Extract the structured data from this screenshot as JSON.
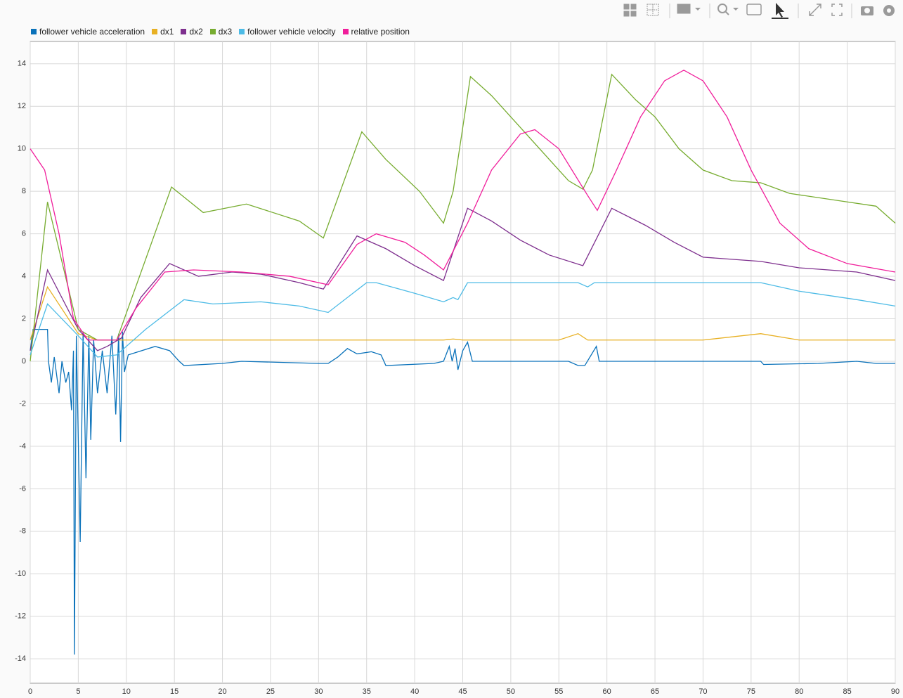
{
  "chart_data": {
    "type": "line",
    "xlim": [
      0,
      90
    ],
    "xticks": [
      0,
      5,
      10,
      15,
      20,
      25,
      30,
      35,
      40,
      45,
      50,
      55,
      60,
      65,
      70,
      75,
      80,
      85,
      90
    ],
    "ylim": [
      -15.15,
      15.05
    ],
    "yticks": [
      -14,
      -12,
      -10,
      -8,
      -6,
      -4,
      -2,
      0,
      2,
      4,
      6,
      8,
      10,
      12,
      14
    ],
    "grid": true,
    "series": [
      {
        "name": "follower vehicle acceleration",
        "color": "#0a72ba",
        "x": [
          0,
          0.3,
          1.8,
          1.9,
          2.2,
          2.5,
          3,
          3.3,
          3.7,
          4,
          4.3,
          4.5,
          4.6,
          4.8,
          5.2,
          5.5,
          5.8,
          6.1,
          6.3,
          6.6,
          7,
          7.5,
          8,
          8.5,
          8.9,
          9.2,
          9.4,
          9.6,
          9.8,
          10.2,
          13,
          14.5,
          15.5,
          16,
          20,
          22,
          30,
          31,
          32,
          33,
          34,
          35.5,
          36.5,
          37,
          42,
          43,
          43.6,
          43.9,
          44.2,
          44.5,
          45,
          45.5,
          46,
          56,
          57,
          57.7,
          58.9,
          59.2,
          76,
          76.3,
          82,
          86,
          88,
          90
        ],
        "values": [
          0.5,
          1.5,
          1.5,
          0,
          -1,
          0.2,
          -1.5,
          0,
          -1,
          -0.5,
          -2.3,
          0.5,
          -13.8,
          1.2,
          -8.5,
          1.4,
          -5.5,
          1.2,
          -3.7,
          1,
          -1.5,
          0.5,
          -1.5,
          1.2,
          -2.5,
          1.3,
          -3.8,
          1.4,
          -0.5,
          0.3,
          0.7,
          0.5,
          0,
          -0.2,
          -0.1,
          0,
          -0.1,
          -0.1,
          0.2,
          0.6,
          0.35,
          0.45,
          0.3,
          -0.2,
          -0.1,
          0,
          0.7,
          0,
          0.6,
          -0.4,
          0.5,
          0.9,
          0,
          0,
          -0.2,
          -0.2,
          0.7,
          0,
          0,
          -0.15,
          -0.1,
          0,
          -0.1,
          -0.1
        ]
      },
      {
        "name": "dx1",
        "color": "#e8b023",
        "x": [
          0,
          1.8,
          5,
          7,
          43,
          44,
          45,
          55,
          57,
          58,
          60,
          70,
          76,
          80,
          90
        ],
        "values": [
          1,
          3.5,
          1.3,
          1,
          1,
          1.05,
          1,
          1,
          1.3,
          1,
          1,
          1,
          1.3,
          1,
          1
        ]
      },
      {
        "name": "dx2",
        "color": "#7e2f8e",
        "x": [
          0,
          1.8,
          5,
          7,
          8,
          9.5,
          11.5,
          14.5,
          17.5,
          21,
          24,
          28,
          30.5,
          34,
          37,
          40,
          43,
          45.5,
          48,
          51,
          54,
          57.5,
          60.5,
          64,
          67,
          70,
          76,
          80,
          86,
          90
        ],
        "values": [
          0.5,
          4.3,
          1.5,
          0.5,
          0.7,
          1.1,
          3,
          4.6,
          4,
          4.2,
          4.1,
          3.7,
          3.4,
          5.9,
          5.3,
          4.5,
          3.8,
          7.2,
          6.6,
          5.7,
          5,
          4.5,
          7.2,
          6.4,
          5.6,
          4.9,
          4.7,
          4.4,
          4.2,
          3.8
        ]
      },
      {
        "name": "dx3",
        "color": "#77ac30",
        "x": [
          0,
          1.8,
          5,
          7,
          9,
          14.7,
          18,
          22.5,
          28,
          30.5,
          34.5,
          37,
          40.5,
          43,
          44,
          45.8,
          48,
          51,
          54,
          56,
          57.5,
          58.5,
          60.5,
          63,
          65,
          67.5,
          70,
          73,
          76,
          79,
          85,
          88,
          90
        ],
        "values": [
          0,
          7.5,
          1.5,
          1,
          1,
          8.2,
          7,
          7.4,
          6.6,
          5.8,
          10.8,
          9.5,
          8,
          6.5,
          8,
          13.4,
          12.5,
          11,
          9.5,
          8.5,
          8.1,
          9,
          13.5,
          12.3,
          11.5,
          10,
          9,
          8.5,
          8.4,
          7.9,
          7.5,
          7.3,
          6.5
        ]
      },
      {
        "name": "follower vehicle velocity",
        "color": "#4dbbe6",
        "x": [
          0,
          1.8,
          5,
          7,
          9,
          12,
          16,
          19,
          24,
          28,
          31,
          35,
          36,
          40,
          43,
          44,
          44.5,
          45.5,
          57,
          58,
          58.7,
          76,
          80,
          86,
          90
        ],
        "values": [
          0.3,
          2.7,
          1.2,
          0.2,
          0.3,
          1.5,
          2.9,
          2.7,
          2.8,
          2.6,
          2.3,
          3.7,
          3.7,
          3.2,
          2.8,
          3,
          2.9,
          3.7,
          3.7,
          3.5,
          3.7,
          3.7,
          3.3,
          2.9,
          2.6
        ]
      },
      {
        "name": "relative position",
        "color": "#f01e9b",
        "x": [
          0,
          1.5,
          3,
          4.5,
          6,
          9,
          11,
          14,
          17,
          22,
          27,
          31,
          34,
          36,
          39,
          41,
          43,
          45.5,
          48,
          51,
          52.5,
          55,
          58,
          59,
          61,
          63.5,
          66,
          68,
          70,
          72.5,
          75,
          78,
          81,
          85,
          90
        ],
        "values": [
          10,
          9,
          6,
          2,
          1,
          1,
          2.5,
          4.2,
          4.3,
          4.2,
          4,
          3.6,
          5.5,
          6,
          5.6,
          5,
          4.3,
          6.5,
          9,
          10.7,
          10.9,
          10,
          7.8,
          7.1,
          9,
          11.5,
          13.2,
          13.7,
          13.2,
          11.5,
          9,
          6.5,
          5.3,
          4.6,
          4.2
        ]
      }
    ]
  }
}
